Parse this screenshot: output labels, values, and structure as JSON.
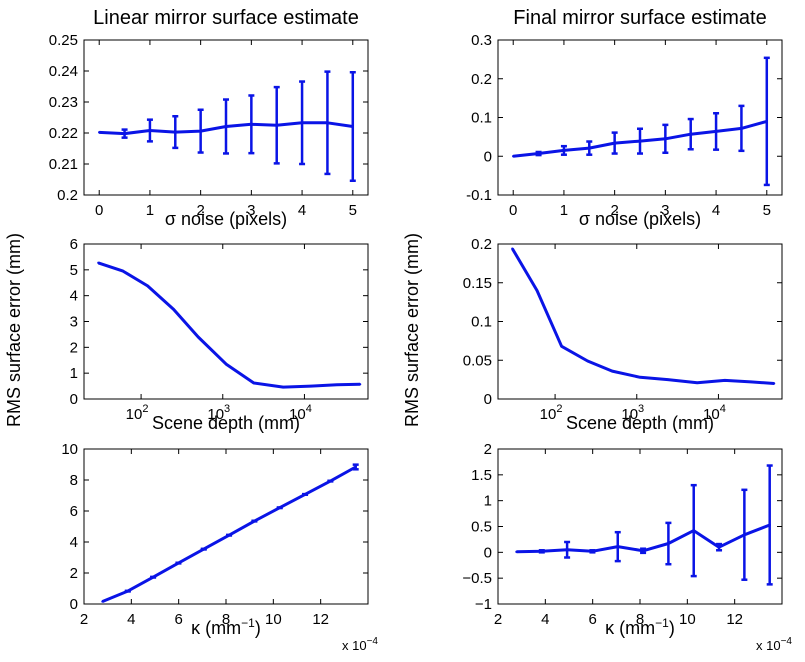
{
  "shared": {
    "ylabel": "RMS surface error (mm)",
    "series_color": "#0a14e6",
    "x_multiplier": "x 10"
  },
  "chart_data": [
    {
      "id": "tl",
      "type": "line",
      "title": "Linear mirror surface estimate",
      "xlabel": "σ noise (pixels)",
      "xlim": [
        -0.3,
        5.3
      ],
      "ylim": [
        0.2,
        0.25
      ],
      "xticks": [
        0,
        1,
        2,
        3,
        4,
        5
      ],
      "xtick_labels": [
        "0",
        "1",
        "2",
        "3",
        "4",
        "5"
      ],
      "yticks": [
        0.2,
        0.21,
        0.22,
        0.23,
        0.24,
        0.25
      ],
      "ytick_labels": [
        "0.2",
        "0.21",
        "0.22",
        "0.23",
        "0.24",
        "0.25"
      ],
      "x": [
        0,
        0.5,
        1,
        1.5,
        2,
        2.5,
        3,
        3.5,
        4,
        4.5,
        5
      ],
      "y": [
        0.2202,
        0.2198,
        0.2208,
        0.2203,
        0.2206,
        0.2221,
        0.2228,
        0.2225,
        0.2233,
        0.2233,
        0.2221
      ],
      "err": [
        0,
        0.0013,
        0.0035,
        0.0051,
        0.0069,
        0.0087,
        0.0093,
        0.0123,
        0.0133,
        0.0165,
        0.0175
      ]
    },
    {
      "id": "tr",
      "type": "line",
      "title": "Final mirror surface estimate",
      "xlabel": "σ noise (pixels)",
      "xlim": [
        -0.3,
        5.3
      ],
      "ylim": [
        -0.1,
        0.3
      ],
      "xticks": [
        0,
        1,
        2,
        3,
        4,
        5
      ],
      "xtick_labels": [
        "0",
        "1",
        "2",
        "3",
        "4",
        "5"
      ],
      "yticks": [
        -0.1,
        0,
        0.1,
        0.2,
        0.3
      ],
      "ytick_labels": [
        "-0.1",
        "0",
        "0.1",
        "0.2",
        "0.3"
      ],
      "x": [
        0,
        0.5,
        1,
        1.5,
        2,
        2.5,
        3,
        3.5,
        4,
        4.5,
        5
      ],
      "y": [
        0,
        0.007,
        0.015,
        0.021,
        0.034,
        0.039,
        0.045,
        0.057,
        0.064,
        0.072,
        0.09
      ],
      "err": [
        0,
        0.004,
        0.011,
        0.017,
        0.027,
        0.032,
        0.036,
        0.039,
        0.047,
        0.058,
        0.164
      ]
    },
    {
      "id": "ml",
      "type": "line",
      "xscale": "log",
      "title": "",
      "xlabel": "Scene depth (mm)",
      "xlim": [
        20,
        60000
      ],
      "ylim": [
        0,
        6
      ],
      "xticks": [
        100,
        1000,
        10000
      ],
      "xtick_labels": [
        "10^2",
        "10^3",
        "10^4"
      ],
      "yticks": [
        0,
        1,
        2,
        3,
        4,
        5,
        6
      ],
      "ytick_labels": [
        "0",
        "1",
        "2",
        "3",
        "4",
        "5",
        "6"
      ],
      "x": [
        30,
        60,
        120,
        250,
        500,
        1100,
        2400,
        5500,
        12000,
        25000,
        48000
      ],
      "y": [
        5.27,
        4.95,
        4.38,
        3.47,
        2.4,
        1.35,
        0.62,
        0.46,
        0.5,
        0.55,
        0.57
      ]
    },
    {
      "id": "mr",
      "type": "line",
      "xscale": "log",
      "title": "",
      "xlabel": "Scene depth (mm)",
      "xlim": [
        20,
        60000
      ],
      "ylim": [
        0,
        0.2
      ],
      "xticks": [
        100,
        1000,
        10000
      ],
      "xtick_labels": [
        "10^2",
        "10^3",
        "10^4"
      ],
      "yticks": [
        0,
        0.05,
        0.1,
        0.15,
        0.2
      ],
      "ytick_labels": [
        "0",
        "0.05",
        "0.1",
        "0.15",
        "0.2"
      ],
      "x": [
        30,
        60,
        120,
        250,
        500,
        1100,
        2400,
        5500,
        12000,
        25000,
        48000
      ],
      "y": [
        0.194,
        0.14,
        0.068,
        0.049,
        0.036,
        0.028,
        0.025,
        0.021,
        0.024,
        0.022,
        0.02
      ]
    },
    {
      "id": "bl",
      "type": "line",
      "title": "",
      "xlabel": "κ (mm−1)",
      "x_exponent": "−4",
      "xlim": [
        2,
        14
      ],
      "ylim": [
        0,
        10
      ],
      "xticks": [
        2,
        4,
        6,
        8,
        10,
        12
      ],
      "xtick_labels": [
        "2",
        "4",
        "6",
        "8",
        "10",
        "12"
      ],
      "yticks": [
        0,
        2,
        4,
        6,
        8,
        10
      ],
      "ytick_labels": [
        "0",
        "2",
        "4",
        "6",
        "8",
        "10"
      ],
      "x": [
        2.78,
        3.85,
        4.92,
        5.99,
        7.06,
        8.13,
        9.2,
        10.27,
        11.34,
        12.41,
        13.48
      ],
      "y": [
        0.16,
        0.83,
        1.73,
        2.64,
        3.54,
        4.44,
        5.35,
        6.21,
        7.07,
        7.93,
        8.84
      ],
      "err": [
        0,
        0.02,
        0.02,
        0.02,
        0.02,
        0.02,
        0.02,
        0.02,
        0.02,
        0.02,
        0.15
      ]
    },
    {
      "id": "br",
      "type": "line",
      "title": "",
      "xlabel": "κ (mm−1)",
      "x_exponent": "−4",
      "xlim": [
        2,
        14
      ],
      "ylim": [
        -1,
        2
      ],
      "xticks": [
        2,
        4,
        6,
        8,
        10,
        12
      ],
      "xtick_labels": [
        "2",
        "4",
        "6",
        "8",
        "10",
        "12"
      ],
      "yticks": [
        -1,
        -0.5,
        0,
        0.5,
        1,
        1.5,
        2
      ],
      "ytick_labels": [
        "−1",
        "−0.5",
        "0",
        "0.5",
        "1",
        "1.5",
        "2"
      ],
      "x": [
        2.78,
        3.85,
        4.92,
        5.99,
        7.06,
        8.13,
        9.2,
        10.27,
        11.34,
        12.41,
        13.48
      ],
      "y": [
        0.01,
        0.02,
        0.05,
        0.02,
        0.11,
        0.03,
        0.17,
        0.42,
        0.1,
        0.34,
        0.53
      ],
      "err": [
        0,
        0.02,
        0.15,
        0.02,
        0.28,
        0.04,
        0.4,
        0.88,
        0.06,
        0.87,
        1.15
      ]
    }
  ]
}
